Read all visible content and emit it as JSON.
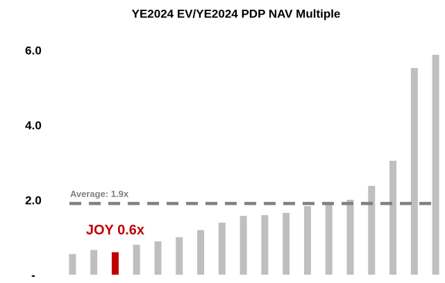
{
  "chart_data": {
    "type": "bar",
    "title": "YE2024 EV/YE2024 PDP NAV Multiple",
    "categories": [
      null,
      null,
      null,
      null,
      null,
      null,
      null,
      null,
      null,
      null,
      null,
      null,
      null,
      null,
      null,
      null,
      null,
      null
    ],
    "values": [
      0.55,
      0.66,
      0.6,
      0.8,
      0.89,
      1.0,
      1.19,
      1.39,
      1.57,
      1.59,
      1.65,
      1.83,
      1.93,
      2.0,
      2.37,
      3.04,
      5.52,
      5.87
    ],
    "colors": [
      "#bfbfbf",
      "#bfbfbf",
      "#c00000",
      "#bfbfbf",
      "#bfbfbf",
      "#bfbfbf",
      "#bfbfbf",
      "#bfbfbf",
      "#bfbfbf",
      "#bfbfbf",
      "#bfbfbf",
      "#bfbfbf",
      "#bfbfbf",
      "#bfbfbf",
      "#bfbfbf",
      "#bfbfbf",
      "#bfbfbf",
      "#bfbfbf"
    ],
    "ylim": [
      0,
      6.2
    ],
    "yticks": [
      {
        "value": 0,
        "label": "-"
      },
      {
        "value": 2,
        "label": "2.0"
      },
      {
        "value": 4,
        "label": "4.0"
      },
      {
        "value": 6,
        "label": "6.0"
      }
    ],
    "grid": false,
    "average": {
      "value": 1.9,
      "label": "Average: 1.9x",
      "color": "#808080"
    },
    "annotation": {
      "text": "JOY 0.6x",
      "index": 2,
      "color": "#c00000"
    }
  }
}
